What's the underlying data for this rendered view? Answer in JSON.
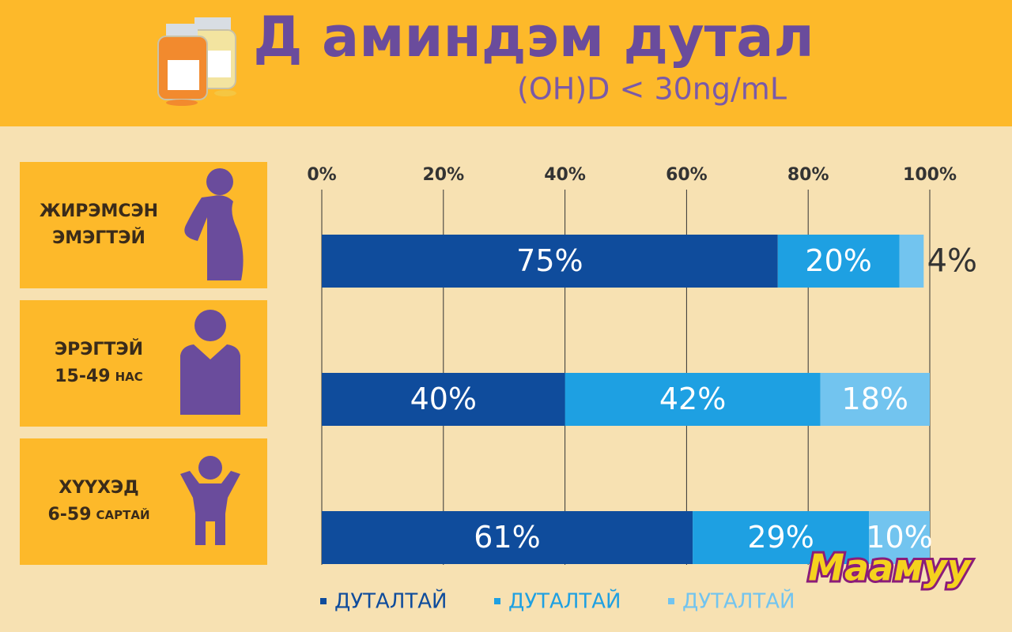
{
  "chart_data": {
    "type": "bar",
    "orientation": "horizontal",
    "stacked": true,
    "title": "Д аминдэм дутал",
    "subtitle": "(OH)D < 30ng/mL",
    "categories": [
      [
        "ЖИРЭМСЭН",
        "ЭМЭГТЭЙ"
      ],
      [
        "ЭРЭГТЭЙ",
        "15-49",
        "НАС"
      ],
      [
        "ХҮҮХЭД",
        "6-59",
        "САРТАЙ"
      ]
    ],
    "series": [
      {
        "name": "ДУТАЛТАЙ",
        "color": "#0f4c9c",
        "values": [
          75,
          40,
          61
        ],
        "value_labels": [
          "75%",
          "40%",
          "61%"
        ]
      },
      {
        "name": "ДУТАЛТАЙ",
        "color": "#1ea0e2",
        "values": [
          20,
          42,
          29
        ],
        "value_labels": [
          "20%",
          "42%",
          "29%"
        ]
      },
      {
        "name": "ДУТАЛТАЙ",
        "color": "#72c4ef",
        "values": [
          4,
          18,
          10
        ],
        "value_labels": [
          "4%",
          "18%",
          "10%"
        ]
      }
    ],
    "xlim": [
      0,
      100
    ],
    "xticks": [
      {
        "value": 0,
        "label": "0%"
      },
      {
        "value": 20,
        "label": "20%"
      },
      {
        "value": 40,
        "label": "40%"
      },
      {
        "value": 60,
        "label": "60%"
      },
      {
        "value": 80,
        "label": "80%"
      },
      {
        "value": 100,
        "label": "100%"
      }
    ],
    "grid": true,
    "legend": "bottom",
    "brand": "Маамуу"
  }
}
